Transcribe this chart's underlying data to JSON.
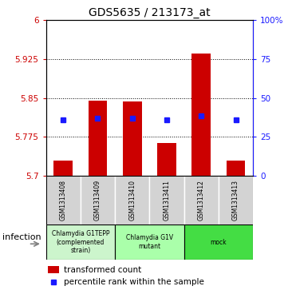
{
  "title": "GDS5635 / 213173_at",
  "samples": [
    "GSM1313408",
    "GSM1313409",
    "GSM1313410",
    "GSM1313411",
    "GSM1313412",
    "GSM1313413"
  ],
  "bar_values": [
    5.728,
    5.845,
    5.843,
    5.762,
    5.936,
    5.728
  ],
  "blue_dot_values": [
    5.808,
    5.81,
    5.81,
    5.808,
    5.815,
    5.808
  ],
  "baseline": 5.7,
  "ylim_left": [
    5.7,
    6.0
  ],
  "ylim_right": [
    0,
    100
  ],
  "yticks_left": [
    5.7,
    5.775,
    5.85,
    5.925,
    6.0
  ],
  "ytick_left_labels": [
    "5.7",
    "5.775",
    "5.85",
    "5.925",
    "6"
  ],
  "yticks_right": [
    0,
    25,
    50,
    75,
    100
  ],
  "yticks_right_labels": [
    "0",
    "25",
    "50",
    "75",
    "100%"
  ],
  "grid_lines": [
    5.775,
    5.85,
    5.925
  ],
  "bar_color": "#cc0000",
  "blue_dot_color": "#1a1aff",
  "sample_box_color": "#d3d3d3",
  "group_defs": [
    {
      "indices": [
        0,
        1
      ],
      "label": "Chlamydia G1TEPP\n(complemented\nstrain)",
      "color": "#ccf5cc"
    },
    {
      "indices": [
        2,
        3
      ],
      "label": "Chlamydia G1V\nmutant",
      "color": "#aaffaa"
    },
    {
      "indices": [
        4,
        5
      ],
      "label": "mock",
      "color": "#44dd44"
    }
  ],
  "factor_label": "infection",
  "legend_items": [
    "transformed count",
    "percentile rank within the sample"
  ],
  "left_tick_color": "#cc0000",
  "right_tick_color": "#1a1aff",
  "bar_width": 0.55,
  "title_fontsize": 10
}
